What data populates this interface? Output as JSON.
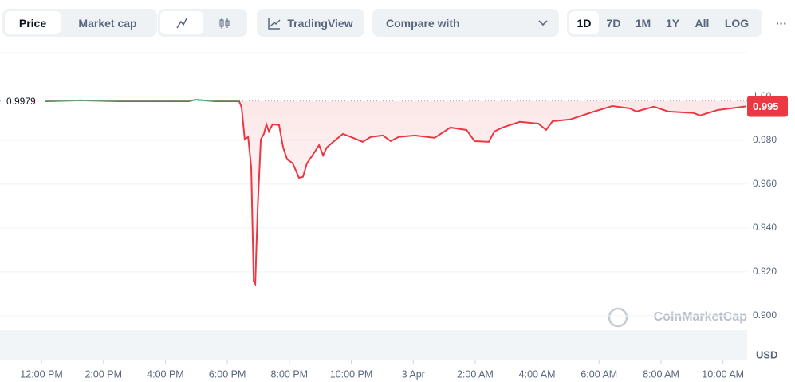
{
  "toolbar": {
    "tabs": [
      "Price",
      "Market cap"
    ],
    "tradingview": "TradingView",
    "compare": "Compare with",
    "ranges": [
      "1D",
      "7D",
      "1M",
      "1Y",
      "All"
    ],
    "log": "LOG",
    "more": "···"
  },
  "chart_data": {
    "type": "line",
    "x": [
      12.13,
      13.24,
      14.52,
      15.81,
      16.76,
      16.97,
      17.61,
      18.38,
      18.46,
      18.56,
      18.67,
      18.77,
      18.85,
      18.9,
      18.98,
      19.08,
      19.18,
      19.26,
      19.34,
      19.46,
      19.67,
      19.8,
      19.93,
      20.11,
      20.31,
      20.44,
      20.57,
      20.83,
      20.96,
      21.09,
      21.21,
      21.42,
      21.73,
      21.99,
      22.37,
      22.63,
      23.02,
      23.27,
      23.53,
      24.05,
      24.69,
      25.2,
      25.72,
      25.98,
      26.44,
      26.62,
      26.88,
      27.44,
      28.04,
      28.29,
      28.5,
      29.07,
      29.84,
      30.43,
      31.0,
      31.2,
      31.77,
      32.23,
      33.05,
      33.26,
      33.83,
      34.73
    ],
    "series": [
      {
        "values": [
          0.9978,
          0.9982,
          0.9978,
          0.9978,
          0.9978,
          0.9985,
          0.9978,
          0.9978,
          0.9949,
          0.9804,
          0.9815,
          0.9676,
          0.9156,
          0.9145,
          0.9495,
          0.9804,
          0.9829,
          0.9873,
          0.984,
          0.9873,
          0.9869,
          0.9767,
          0.9713,
          0.9695,
          0.9629,
          0.9633,
          0.9695,
          0.9749,
          0.9778,
          0.9731,
          0.9767,
          0.9793,
          0.9829,
          0.9815,
          0.9793,
          0.9815,
          0.9822,
          0.9796,
          0.9815,
          0.9822,
          0.9811,
          0.9858,
          0.9847,
          0.9796,
          0.9793,
          0.984,
          0.9858,
          0.9884,
          0.9876,
          0.9847,
          0.9887,
          0.9895,
          0.9931,
          0.9956,
          0.9945,
          0.9931,
          0.9953,
          0.9931,
          0.9924,
          0.9913,
          0.9938,
          0.9954
        ],
        "color_above": "#16c784",
        "color_below": "#ea3943"
      }
    ],
    "reference": 0.9979,
    "current_price": {
      "value": 0.9954,
      "label": "0.995"
    },
    "xlim": [
      10.66,
      34.78
    ],
    "xticks": [
      {
        "value": 12,
        "label": "12:00 PM"
      },
      {
        "value": 14,
        "label": "2:00 PM"
      },
      {
        "value": 16,
        "label": "4:00 PM"
      },
      {
        "value": 18,
        "label": "6:00 PM"
      },
      {
        "value": 20,
        "label": "8:00 PM"
      },
      {
        "value": 22,
        "label": "10:00 PM"
      },
      {
        "value": 24,
        "label": "3 Apr"
      },
      {
        "value": 26,
        "label": "2:00 AM"
      },
      {
        "value": 28,
        "label": "4:00 AM"
      },
      {
        "value": 30,
        "label": "6:00 AM"
      },
      {
        "value": 32,
        "label": "8:00 AM"
      },
      {
        "value": 34,
        "label": "10:00 AM"
      }
    ],
    "ylim": [
      0.8796,
      1.0196
    ],
    "yticks": [
      {
        "value": 0.9,
        "label": "0.900"
      },
      {
        "value": 0.92,
        "label": "0.920"
      },
      {
        "value": 0.94,
        "label": "0.940"
      },
      {
        "value": 0.96,
        "label": "0.960"
      },
      {
        "value": 0.98,
        "label": "0.980"
      },
      {
        "value": 1.0,
        "label": "1.00"
      }
    ],
    "grid": true,
    "y_unit": "USD",
    "watermark": "CoinMarketCap"
  }
}
